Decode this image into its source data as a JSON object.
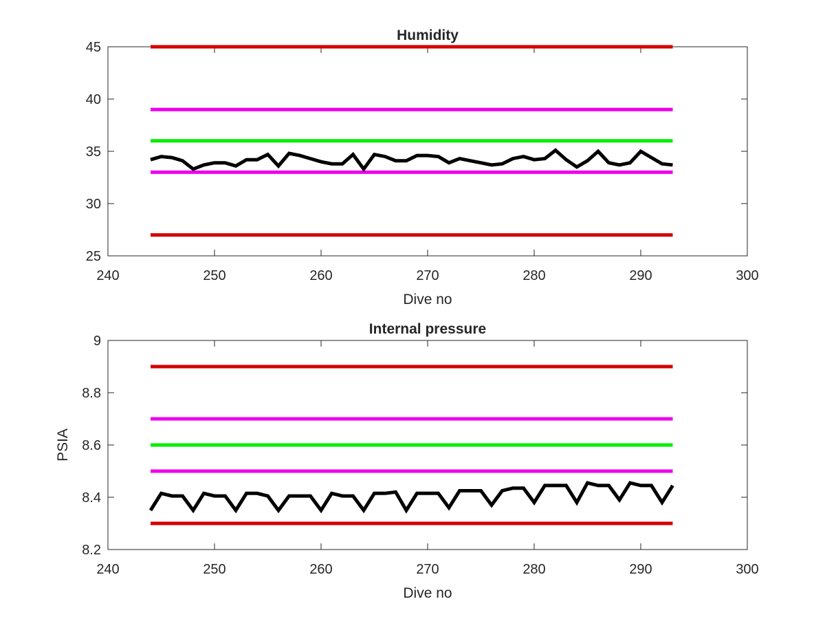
{
  "chart_data": [
    {
      "type": "line",
      "title": "Humidity",
      "xlabel": "Dive no",
      "ylabel": "",
      "xlim": [
        240,
        300
      ],
      "ylim": [
        25,
        45
      ],
      "xticks": [
        "240",
        "250",
        "260",
        "270",
        "280",
        "290",
        "300"
      ],
      "yticks": [
        "25",
        "30",
        "35",
        "40",
        "45"
      ],
      "grid": false,
      "limits": [
        {
          "y": 45,
          "x": [
            244,
            293
          ],
          "color": "#d40000"
        },
        {
          "y": 39,
          "x": [
            244,
            293
          ],
          "color": "#ee00ee"
        },
        {
          "y": 36,
          "x": [
            244,
            293
          ],
          "color": "#00ee00"
        },
        {
          "y": 33,
          "x": [
            244,
            293
          ],
          "color": "#ee00ee"
        },
        {
          "y": 27,
          "x": [
            244,
            293
          ],
          "color": "#d40000"
        }
      ],
      "series": [
        {
          "color": "#000000",
          "x": [
            244,
            245,
            246,
            247,
            248,
            249,
            250,
            251,
            252,
            253,
            254,
            255,
            256,
            257,
            258,
            259,
            260,
            261,
            262,
            263,
            264,
            265,
            266,
            267,
            268,
            269,
            270,
            271,
            272,
            273,
            274,
            275,
            276,
            277,
            278,
            279,
            280,
            281,
            282,
            283,
            284,
            285,
            286,
            287,
            288,
            289,
            290,
            291,
            292,
            293
          ],
          "values": [
            34.2,
            34.5,
            34.4,
            34.1,
            33.3,
            33.7,
            33.9,
            33.9,
            33.6,
            34.2,
            34.2,
            34.7,
            33.6,
            34.8,
            34.6,
            34.3,
            34.0,
            33.8,
            33.8,
            34.7,
            33.3,
            34.7,
            34.5,
            34.1,
            34.1,
            34.6,
            34.6,
            34.5,
            33.9,
            34.3,
            34.1,
            33.9,
            33.7,
            33.8,
            34.3,
            34.5,
            34.2,
            34.3,
            35.1,
            34.2,
            33.5,
            34.1,
            35.0,
            33.9,
            33.7,
            33.9,
            35.0,
            34.4,
            33.8,
            33.7
          ]
        }
      ]
    },
    {
      "type": "line",
      "title": "Internal pressure",
      "xlabel": "Dive no",
      "ylabel": "PSIA",
      "xlim": [
        240,
        300
      ],
      "ylim": [
        8.2,
        9.0
      ],
      "xticks": [
        "240",
        "250",
        "260",
        "270",
        "280",
        "290",
        "300"
      ],
      "yticks": [
        "8.2",
        "8.4",
        "8.6",
        "8.8",
        "9"
      ],
      "grid": false,
      "limits": [
        {
          "y": 8.9,
          "x": [
            244,
            293
          ],
          "color": "#d40000"
        },
        {
          "y": 8.7,
          "x": [
            244,
            293
          ],
          "color": "#ee00ee"
        },
        {
          "y": 8.6,
          "x": [
            244,
            293
          ],
          "color": "#00ee00"
        },
        {
          "y": 8.5,
          "x": [
            244,
            293
          ],
          "color": "#ee00ee"
        },
        {
          "y": 8.3,
          "x": [
            244,
            293
          ],
          "color": "#d40000"
        }
      ],
      "series": [
        {
          "color": "#000000",
          "x": [
            244,
            245,
            246,
            247,
            248,
            249,
            250,
            251,
            252,
            253,
            254,
            255,
            256,
            257,
            258,
            259,
            260,
            261,
            262,
            263,
            264,
            265,
            266,
            267,
            268,
            269,
            270,
            271,
            272,
            273,
            274,
            275,
            276,
            277,
            278,
            279,
            280,
            281,
            282,
            283,
            284,
            285,
            286,
            287,
            288,
            289,
            290,
            291,
            292,
            293
          ],
          "values": [
            8.35,
            8.415,
            8.405,
            8.405,
            8.35,
            8.415,
            8.405,
            8.405,
            8.35,
            8.415,
            8.415,
            8.405,
            8.35,
            8.405,
            8.405,
            8.405,
            8.35,
            8.415,
            8.405,
            8.405,
            8.35,
            8.415,
            8.415,
            8.42,
            8.35,
            8.415,
            8.415,
            8.415,
            8.36,
            8.425,
            8.425,
            8.425,
            8.37,
            8.425,
            8.435,
            8.435,
            8.38,
            8.445,
            8.445,
            8.445,
            8.38,
            8.455,
            8.445,
            8.445,
            8.39,
            8.455,
            8.445,
            8.445,
            8.38,
            8.445
          ]
        }
      ]
    }
  ]
}
